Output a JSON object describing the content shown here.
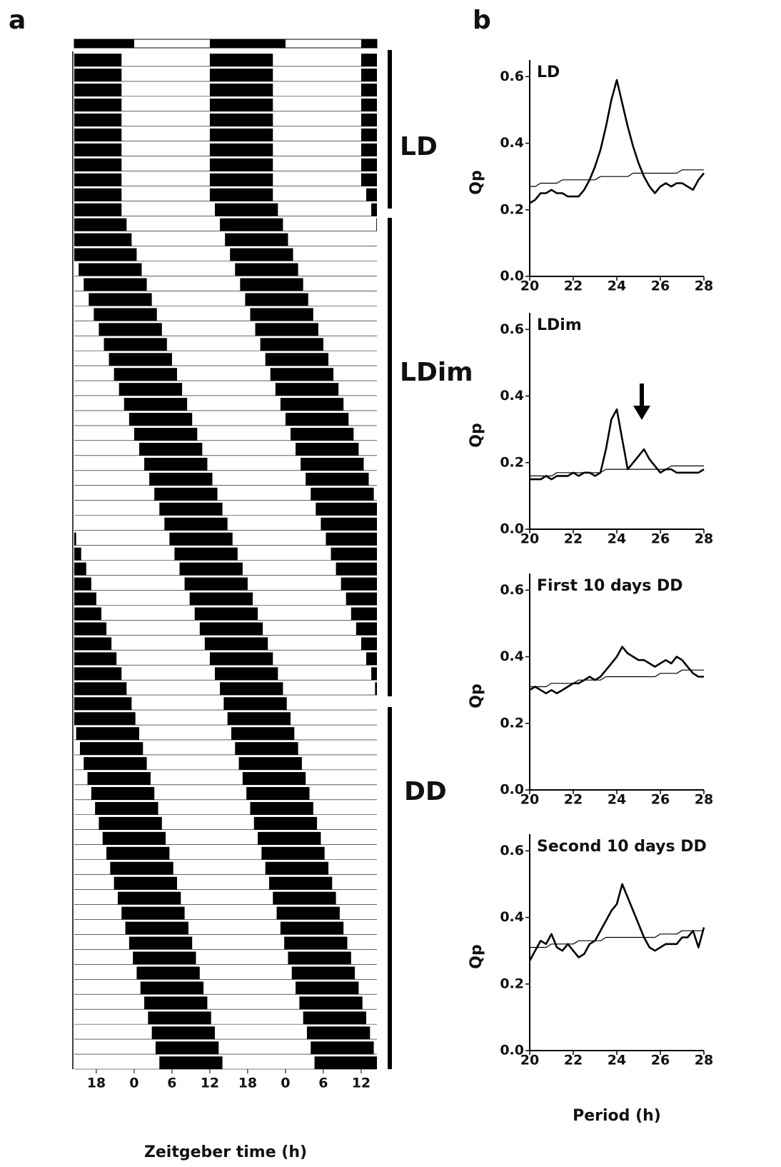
{
  "chart_data": [
    {
      "type": "actogram",
      "panel": "a",
      "x_label": "Zeitgeber time (h)",
      "xlim": [
        14.5,
        62.5
      ],
      "xticks": [
        {
          "value": 18,
          "label": "18"
        },
        {
          "value": 24,
          "label": "0"
        },
        {
          "value": 30,
          "label": "6"
        },
        {
          "value": 36,
          "label": "12"
        },
        {
          "value": 42,
          "label": "18"
        },
        {
          "value": 48,
          "label": "0"
        },
        {
          "value": 54,
          "label": "6"
        },
        {
          "value": 60,
          "label": "12"
        }
      ],
      "dark": [
        [
          14.5,
          24
        ],
        [
          36,
          48
        ],
        [
          60,
          62.5
        ]
      ],
      "phases": [
        "LD",
        "LDim",
        "DD"
      ],
      "onset": [
        12,
        12,
        12,
        12,
        12,
        12,
        12,
        12,
        12,
        12,
        12,
        12.8,
        13.6,
        14.4,
        15.2,
        16,
        16.8,
        17.6,
        18.4,
        19.2,
        20,
        20.8,
        21.6,
        22.4,
        23.2,
        24,
        24.8,
        25.6,
        26.4,
        27.2,
        28,
        28.8,
        29.6,
        30.4,
        31.2,
        32,
        32.8,
        33.6,
        34.4,
        35.2,
        36,
        36.8,
        37.6,
        38.2,
        38.8,
        39.4,
        40,
        40.6,
        41.2,
        41.8,
        42.4,
        43,
        43.6,
        44.2,
        44.8,
        45.4,
        46,
        46.6,
        47.2,
        47.8,
        48.4,
        49,
        49.6,
        50.2,
        50.8,
        51.4,
        52,
        52.6
      ],
      "duration": 10,
      "color": "#000000"
    },
    {
      "type": "line",
      "panel": "b",
      "title": "LD",
      "y_label": "Qp",
      "x": [
        20,
        20.25,
        20.5,
        20.75,
        21,
        21.25,
        21.5,
        21.75,
        22,
        22.25,
        22.5,
        22.75,
        23,
        23.25,
        23.5,
        23.75,
        24,
        24.25,
        24.5,
        24.75,
        25,
        25.25,
        25.5,
        25.75,
        26,
        26.25,
        26.5,
        26.75,
        27,
        27.25,
        27.5,
        27.75,
        28
      ],
      "xlim": [
        20,
        28
      ],
      "xticks": [
        20,
        22,
        24,
        26,
        28
      ],
      "ylim": [
        0,
        0.65
      ],
      "yticks": [
        {
          "value": 0,
          "label": "0.0"
        },
        0.2,
        0.4,
        0.6
      ],
      "series": [
        {
          "color": "#000000",
          "values": [
            0.22,
            0.23,
            0.25,
            0.25,
            0.26,
            0.25,
            0.25,
            0.24,
            0.24,
            0.24,
            0.26,
            0.29,
            0.33,
            0.38,
            0.45,
            0.53,
            0.59,
            0.52,
            0.45,
            0.39,
            0.34,
            0.3,
            0.27,
            0.25,
            0.27,
            0.28,
            0.27,
            0.28,
            0.28,
            0.27,
            0.26,
            0.29,
            0.31
          ]
        },
        {
          "color": "#000000",
          "values": [
            0.27,
            0.27,
            0.28,
            0.28,
            0.28,
            0.28,
            0.29,
            0.29,
            0.29,
            0.29,
            0.29,
            0.29,
            0.29,
            0.3,
            0.3,
            0.3,
            0.3,
            0.3,
            0.3,
            0.31,
            0.31,
            0.31,
            0.31,
            0.31,
            0.31,
            0.31,
            0.31,
            0.31,
            0.32,
            0.32,
            0.32,
            0.32,
            0.32
          ]
        }
      ]
    },
    {
      "type": "line",
      "title": "LDim",
      "y_label": "Qp",
      "x": [
        20,
        20.25,
        20.5,
        20.75,
        21,
        21.25,
        21.5,
        21.75,
        22,
        22.25,
        22.5,
        22.75,
        23,
        23.25,
        23.5,
        23.75,
        24,
        24.25,
        24.5,
        24.75,
        25,
        25.25,
        25.5,
        25.75,
        26,
        26.25,
        26.5,
        26.75,
        27,
        27.25,
        27.5,
        27.75,
        28
      ],
      "xlim": [
        20,
        28
      ],
      "xticks": [
        20,
        22,
        24,
        26,
        28
      ],
      "ylim": [
        0,
        0.65
      ],
      "yticks": [
        {
          "value": 0,
          "label": "0.0"
        },
        0.2,
        0.4,
        0.6
      ],
      "series": [
        {
          "color": "#000000",
          "values": [
            0.15,
            0.15,
            0.15,
            0.16,
            0.15,
            0.16,
            0.16,
            0.16,
            0.17,
            0.16,
            0.17,
            0.17,
            0.16,
            0.17,
            0.24,
            0.33,
            0.36,
            0.27,
            0.18,
            0.2,
            0.22,
            0.24,
            0.21,
            0.19,
            0.17,
            0.18,
            0.18,
            0.17,
            0.17,
            0.17,
            0.17,
            0.17,
            0.18
          ]
        },
        {
          "color": "#000000",
          "values": [
            0.16,
            0.16,
            0.16,
            0.16,
            0.16,
            0.17,
            0.17,
            0.17,
            0.17,
            0.17,
            0.17,
            0.17,
            0.17,
            0.17,
            0.18,
            0.18,
            0.18,
            0.18,
            0.18,
            0.18,
            0.18,
            0.18,
            0.18,
            0.18,
            0.18,
            0.18,
            0.19,
            0.19,
            0.19,
            0.19,
            0.19,
            0.19,
            0.19
          ]
        }
      ]
    },
    {
      "type": "line",
      "title": "First 10 days DD",
      "y_label": "Qp",
      "x": [
        20,
        20.25,
        20.5,
        20.75,
        21,
        21.25,
        21.5,
        21.75,
        22,
        22.25,
        22.5,
        22.75,
        23,
        23.25,
        23.5,
        23.75,
        24,
        24.25,
        24.5,
        24.75,
        25,
        25.25,
        25.5,
        25.75,
        26,
        26.25,
        26.5,
        26.75,
        27,
        27.25,
        27.5,
        27.75,
        28
      ],
      "xlim": [
        20,
        28
      ],
      "xticks": [
        20,
        22,
        24,
        26,
        28
      ],
      "ylim": [
        0,
        0.65
      ],
      "yticks": [
        {
          "value": 0,
          "label": "0.0"
        },
        0.2,
        0.4,
        0.6
      ],
      "series": [
        {
          "color": "#000000",
          "values": [
            0.3,
            0.31,
            0.3,
            0.29,
            0.3,
            0.29,
            0.3,
            0.31,
            0.32,
            0.32,
            0.33,
            0.34,
            0.33,
            0.34,
            0.36,
            0.38,
            0.4,
            0.43,
            0.41,
            0.4,
            0.39,
            0.39,
            0.38,
            0.37,
            0.38,
            0.39,
            0.38,
            0.4,
            0.39,
            0.37,
            0.35,
            0.34,
            0.34
          ]
        },
        {
          "color": "#000000",
          "values": [
            0.31,
            0.31,
            0.31,
            0.31,
            0.32,
            0.32,
            0.32,
            0.32,
            0.32,
            0.33,
            0.33,
            0.33,
            0.33,
            0.33,
            0.34,
            0.34,
            0.34,
            0.34,
            0.34,
            0.34,
            0.34,
            0.34,
            0.34,
            0.34,
            0.35,
            0.35,
            0.35,
            0.35,
            0.36,
            0.36,
            0.36,
            0.36,
            0.36
          ]
        }
      ]
    },
    {
      "type": "line",
      "title": "Second 10 days DD",
      "y_label": "Qp",
      "x_label": "Period (h)",
      "x": [
        20,
        20.25,
        20.5,
        20.75,
        21,
        21.25,
        21.5,
        21.75,
        22,
        22.25,
        22.5,
        22.75,
        23,
        23.25,
        23.5,
        23.75,
        24,
        24.25,
        24.5,
        24.75,
        25,
        25.25,
        25.5,
        25.75,
        26,
        26.25,
        26.5,
        26.75,
        27,
        27.25,
        27.5,
        27.75,
        28
      ],
      "xlim": [
        20,
        28
      ],
      "xticks": [
        20,
        22,
        24,
        26,
        28
      ],
      "ylim": [
        0,
        0.65
      ],
      "yticks": [
        {
          "value": 0,
          "label": "0.0"
        },
        0.2,
        0.4,
        0.6
      ],
      "series": [
        {
          "color": "#000000",
          "values": [
            0.27,
            0.3,
            0.33,
            0.32,
            0.35,
            0.31,
            0.3,
            0.32,
            0.3,
            0.28,
            0.29,
            0.32,
            0.33,
            0.36,
            0.39,
            0.42,
            0.44,
            0.5,
            0.46,
            0.42,
            0.38,
            0.34,
            0.31,
            0.3,
            0.31,
            0.32,
            0.32,
            0.32,
            0.34,
            0.34,
            0.36,
            0.31,
            0.37
          ]
        },
        {
          "color": "#000000",
          "values": [
            0.31,
            0.31,
            0.31,
            0.31,
            0.32,
            0.32,
            0.32,
            0.32,
            0.32,
            0.33,
            0.33,
            0.33,
            0.33,
            0.33,
            0.34,
            0.34,
            0.34,
            0.34,
            0.34,
            0.34,
            0.34,
            0.34,
            0.34,
            0.34,
            0.35,
            0.35,
            0.35,
            0.35,
            0.36,
            0.36,
            0.36,
            0.36,
            0.36
          ]
        }
      ]
    }
  ]
}
